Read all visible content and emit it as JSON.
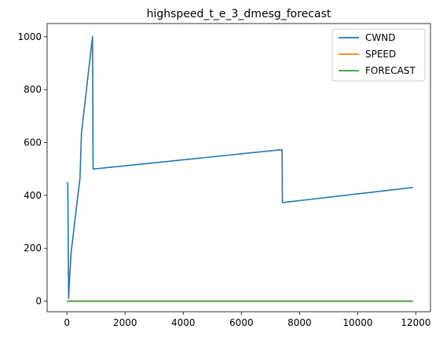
{
  "chart_data": {
    "type": "line",
    "title": "highspeed_t_e_3_dmesg_forecast",
    "xlabel": "",
    "ylabel": "",
    "xlim": [
      -680,
      12500
    ],
    "ylim": [
      -40,
      1050
    ],
    "xticks": [
      0,
      2000,
      4000,
      6000,
      8000,
      10000,
      12000
    ],
    "yticks": [
      0,
      200,
      400,
      600,
      800,
      1000
    ],
    "grid": false,
    "legend_position": "top-right",
    "series": [
      {
        "name": "CWND",
        "color": "#1f77b4",
        "x": [
          0,
          30,
          60,
          80,
          100,
          150,
          200,
          300,
          450,
          500,
          880,
          900,
          920,
          7400,
          7410,
          7420,
          11900
        ],
        "y": [
          450,
          445,
          10,
          60,
          100,
          190,
          235,
          330,
          465,
          635,
          1000,
          500,
          500,
          573,
          373,
          373,
          430
        ]
      },
      {
        "name": "SPEED",
        "color": "#ff7f0e",
        "x": [
          0,
          11900
        ],
        "y": [
          0,
          0
        ]
      },
      {
        "name": "FORECAST",
        "color": "#2ca02c",
        "x": [
          0,
          11900
        ],
        "y": [
          0,
          0
        ]
      }
    ]
  }
}
